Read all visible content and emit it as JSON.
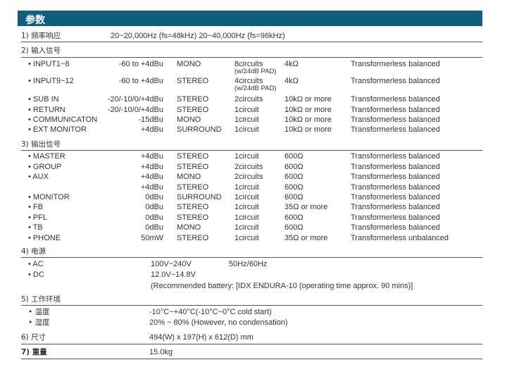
{
  "title": "参数",
  "accent_color": "#0e5f80",
  "sections": {
    "freq": {
      "label": "1) 频率响应",
      "value": "20~20,000Hz (fs=48kHz)  20~40,000Hz (fs=96kHz)"
    },
    "input": {
      "label": "2) 输入信号",
      "rows": [
        [
          "• INPUT1~8",
          "-60 to +4dBu",
          "MONO",
          "8circuits",
          "4kΩ",
          "Transformerless balanced",
          "(w/24dB PAD)"
        ],
        [
          "• INPUT9~12",
          "-60 to +4dBu",
          "STEREO",
          "4circuits",
          "4kΩ",
          "Transformerless balanced",
          "(w/24dB PAD)"
        ],
        [
          "• SUB IN",
          "-20/-10/0/+4dBu",
          "STEREO",
          "2circuits",
          "10kΩ or more",
          "Transformerless balanced"
        ],
        [
          "• RETURN",
          "-20/-10/0/+4dBu",
          "STEREO",
          "1circuit",
          "10kΩ or more",
          "Transformerless balanced"
        ],
        [
          "• COMMUNICATON",
          "-15dBu",
          "MONO",
          "1circuit",
          "10kΩ or more",
          "Transformerless balanced"
        ],
        [
          "• EXT MONITOR",
          "+4dBu",
          "SURROUND",
          "1circuit",
          "10kΩ or more",
          "Transformerless balanced"
        ]
      ]
    },
    "output": {
      "label": "3) 输出信号",
      "rows": [
        [
          "• MASTER",
          "+4dBu",
          "STEREO",
          "1circuit",
          "600Ω",
          "Transformerless balanced"
        ],
        [
          "• GROUP",
          "+4dBu",
          "STEREO",
          "2circuits",
          "600Ω",
          "Transformerless balanced"
        ],
        [
          "• AUX",
          "+4dBu",
          "MONO",
          "2circuits",
          "600Ω",
          "Transformerless balanced"
        ],
        [
          "",
          "+4dBu",
          "STEREO",
          "1circuit",
          "600Ω",
          "Transformerless balanced"
        ],
        [
          "• MONITOR",
          "0dBu",
          "SURROUND",
          "1circuit",
          "600Ω",
          "Transformerless balanced"
        ],
        [
          "• FB",
          "0dBu",
          "STEREO",
          "1circuit",
          "35Ω or more",
          "Transformerless balanced"
        ],
        [
          "• PFL",
          "0dBu",
          "STEREO",
          "1circuit",
          "600Ω",
          "Transformerless balanced"
        ],
        [
          "• TB",
          "0dBu",
          "MONO",
          "1circuit",
          "600Ω",
          "Transformerless balanced"
        ],
        [
          "• PHONE",
          "50mW",
          "STEREO",
          "1circuit",
          "35Ω or more",
          "Transformerless unbalanced"
        ]
      ]
    },
    "power": {
      "label": "4) 电源",
      "ac_label": "• AC",
      "ac_value": "100V~240V",
      "ac_freq": "50Hz/60Hz",
      "dc_label": "• DC",
      "dc_value": "12.0V~14.8V",
      "battery": "(Recommended battery: [IDX ENDURA-10 (operating time approx. 90 mins)]"
    },
    "env": {
      "label": "5) 工作环境",
      "temp_label": "• 温度",
      "temp_value": "-10°C~+40°C(-10°C~0°C cold start)",
      "hum_label": "• 湿度",
      "hum_value": "20% ~ 80% (However, no condensation)"
    },
    "size": {
      "label": "6) 尺寸",
      "value": "494(W) x 197(H) x 612(D) mm"
    },
    "weight": {
      "label": "7) 重量",
      "value": "15.0kg"
    }
  }
}
